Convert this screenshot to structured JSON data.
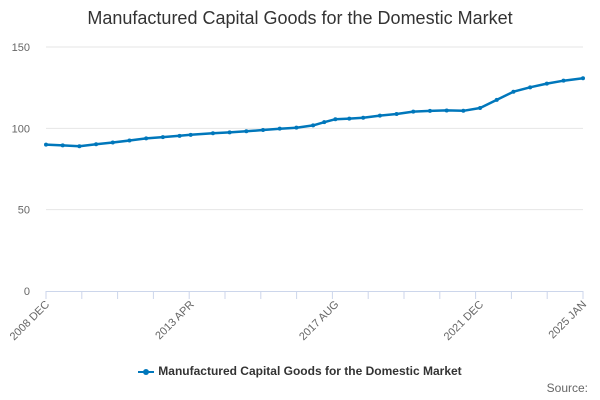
{
  "chart_data": {
    "type": "line",
    "title": "Manufactured Capital Goods for the Domestic Market",
    "xlabel": "",
    "ylabel": "",
    "ylim": [
      0,
      150
    ],
    "yticks": [
      "0",
      "50",
      "100",
      "150"
    ],
    "xticks": [
      "2008 DEC",
      "2013 APR",
      "2017 AUG",
      "2021 DEC",
      "2025 JAN"
    ],
    "x_range": [
      "2008 DEC",
      "2025 JAN"
    ],
    "grid": "horizontal",
    "legend_position": "bottom",
    "source_label": "Source:",
    "series": [
      {
        "name": "Manufactured Capital Goods for the Domestic Market",
        "color": "#0077bb",
        "points": [
          [
            "2008 DEC",
            90.0
          ],
          [
            "2009 JUN",
            89.5
          ],
          [
            "2009 DEC",
            89.0
          ],
          [
            "2010 JUN",
            90.2
          ],
          [
            "2010 DEC",
            91.3
          ],
          [
            "2011 JUN",
            92.5
          ],
          [
            "2011 DEC",
            93.8
          ],
          [
            "2012 JUN",
            94.6
          ],
          [
            "2012 DEC",
            95.4
          ],
          [
            "2013 APR",
            96.0
          ],
          [
            "2013 DEC",
            97.0
          ],
          [
            "2014 JUN",
            97.5
          ],
          [
            "2014 DEC",
            98.2
          ],
          [
            "2015 JUN",
            99.0
          ],
          [
            "2015 DEC",
            99.8
          ],
          [
            "2016 JUN",
            100.4
          ],
          [
            "2016 DEC",
            101.8
          ],
          [
            "2017 APR",
            103.8
          ],
          [
            "2017 AUG",
            105.6
          ],
          [
            "2018 JAN",
            106.0
          ],
          [
            "2018 JUN",
            106.5
          ],
          [
            "2018 DEC",
            107.8
          ],
          [
            "2019 JUN",
            108.8
          ],
          [
            "2019 DEC",
            110.3
          ],
          [
            "2020 JUN",
            110.7
          ],
          [
            "2020 DEC",
            111.0
          ],
          [
            "2021 JUN",
            110.8
          ],
          [
            "2021 DEC",
            112.5
          ],
          [
            "2022 JUN",
            117.5
          ],
          [
            "2022 DEC",
            122.5
          ],
          [
            "2023 JUN",
            125.2
          ],
          [
            "2023 DEC",
            127.5
          ],
          [
            "2024 JUN",
            129.3
          ],
          [
            "2025 JAN",
            130.8
          ]
        ]
      }
    ]
  }
}
